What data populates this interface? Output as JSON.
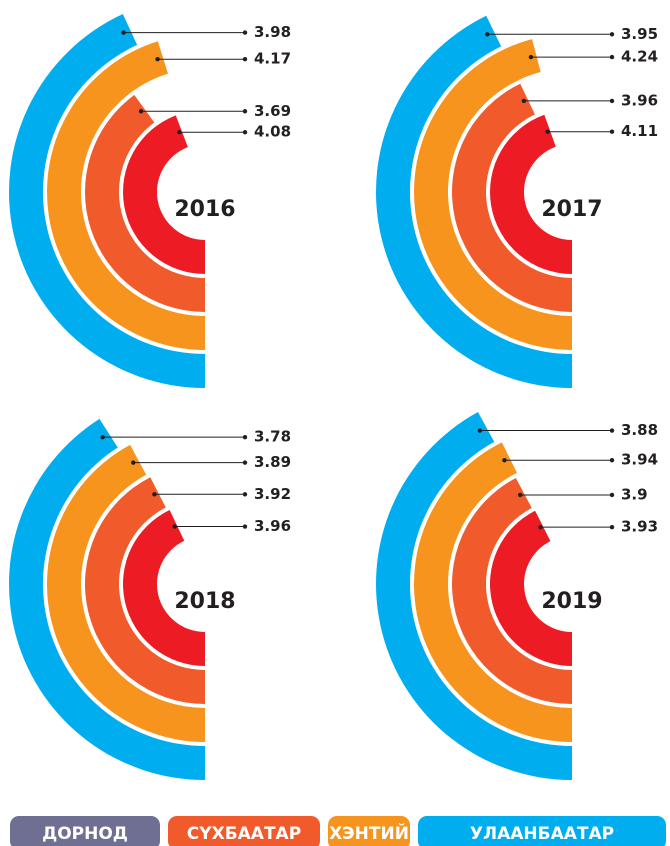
{
  "chart_data": [
    {
      "type": "radial_bar",
      "title": "2016",
      "values": [
        3.98,
        4.17,
        3.69,
        4.08
      ]
    },
    {
      "type": "radial_bar",
      "title": "2017",
      "values": [
        3.95,
        4.24,
        3.96,
        4.11
      ]
    },
    {
      "type": "radial_bar",
      "title": "2018",
      "values": [
        3.78,
        3.89,
        3.92,
        3.96
      ]
    },
    {
      "type": "radial_bar",
      "title": "2019",
      "values": [
        3.88,
        3.94,
        3.9,
        3.93
      ]
    }
  ],
  "ring_colors": [
    "#00aeef",
    "#f7941d",
    "#f15a2b",
    "#ed1c24"
  ],
  "legend": [
    {
      "name": "ДОРНОД",
      "color": "#6f6f94"
    },
    {
      "name": "СҮХБААТАР",
      "color": "#f15a2b"
    },
    {
      "name": "ХЭНТИЙ",
      "color": "#f7941d"
    },
    {
      "name": "УЛААНБААТАР",
      "color": "#00aeef"
    }
  ]
}
